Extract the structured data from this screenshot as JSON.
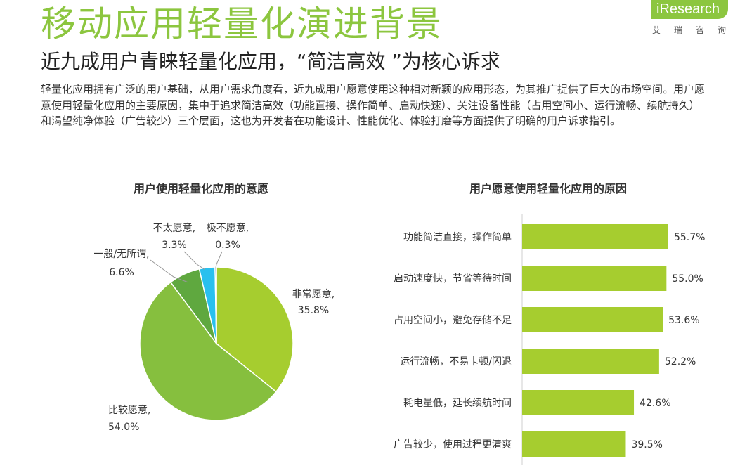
{
  "header": {
    "title": "移动应用轻量化演进背景",
    "subtitle": "近九成用户青睐轻量化应用，“简洁高效 ”为核心诉求",
    "body": "轻量化应用拥有广泛的用户基础，从用户需求角度看，近九成用户愿意使用这种相对新颖的应用形态，为其推广提供了巨大的市场空间。用户愿意使用轻量化应用的主要原因，集中于追求简洁高效（功能直接、操作简单、启动快速）、关注设备性能（占用空间小、运行流畅、续航持久）和渴望纯净体验（广告较少）三个层面，这也为开发者在功能设计、性能优化、体验打磨等方面提供了明确的用户诉求指引。"
  },
  "logo": {
    "brand": "iResearch",
    "sub": "艾瑞咨询",
    "color": "#8cc63f"
  },
  "colors": {
    "accent": "#8cc63f",
    "bar": "#a6cd2f"
  },
  "chart_data": [
    {
      "type": "pie",
      "title": "用户使用轻量化应用的意愿",
      "slices": [
        {
          "label": "非常愿意,",
          "value": 35.8,
          "value_label": "35.8%",
          "color": "#a6cd2f"
        },
        {
          "label": "比较愿意,",
          "value": 54.0,
          "value_label": "54.0%",
          "color": "#86bf3e"
        },
        {
          "label": "一般/无所谓,",
          "value": 6.6,
          "value_label": "6.6%",
          "color": "#5fa83f"
        },
        {
          "label": "不太愿意,",
          "value": 3.3,
          "value_label": "3.3%",
          "color": "#29c0ee"
        },
        {
          "label": "极不愿意,",
          "value": 0.3,
          "value_label": "0.3%",
          "color": "#1f4e9c"
        }
      ]
    },
    {
      "type": "bar",
      "orientation": "horizontal",
      "title": "用户愿意使用轻量化应用的原因",
      "categories": [
        "功能简洁直接，操作简单",
        "启动速度快，节省等待时间",
        "占用空间小，避免存储不足",
        "运行流畅，不易卡顿/闪退",
        "耗电量低，延长续航时间",
        "广告较少，使用过程更清爽"
      ],
      "values": [
        55.7,
        55.0,
        53.6,
        52.2,
        42.6,
        39.5
      ],
      "value_labels": [
        "55.7%",
        "55.0%",
        "53.6%",
        "52.2%",
        "42.6%",
        "39.5%"
      ],
      "color": "#a6cd2f"
    }
  ]
}
